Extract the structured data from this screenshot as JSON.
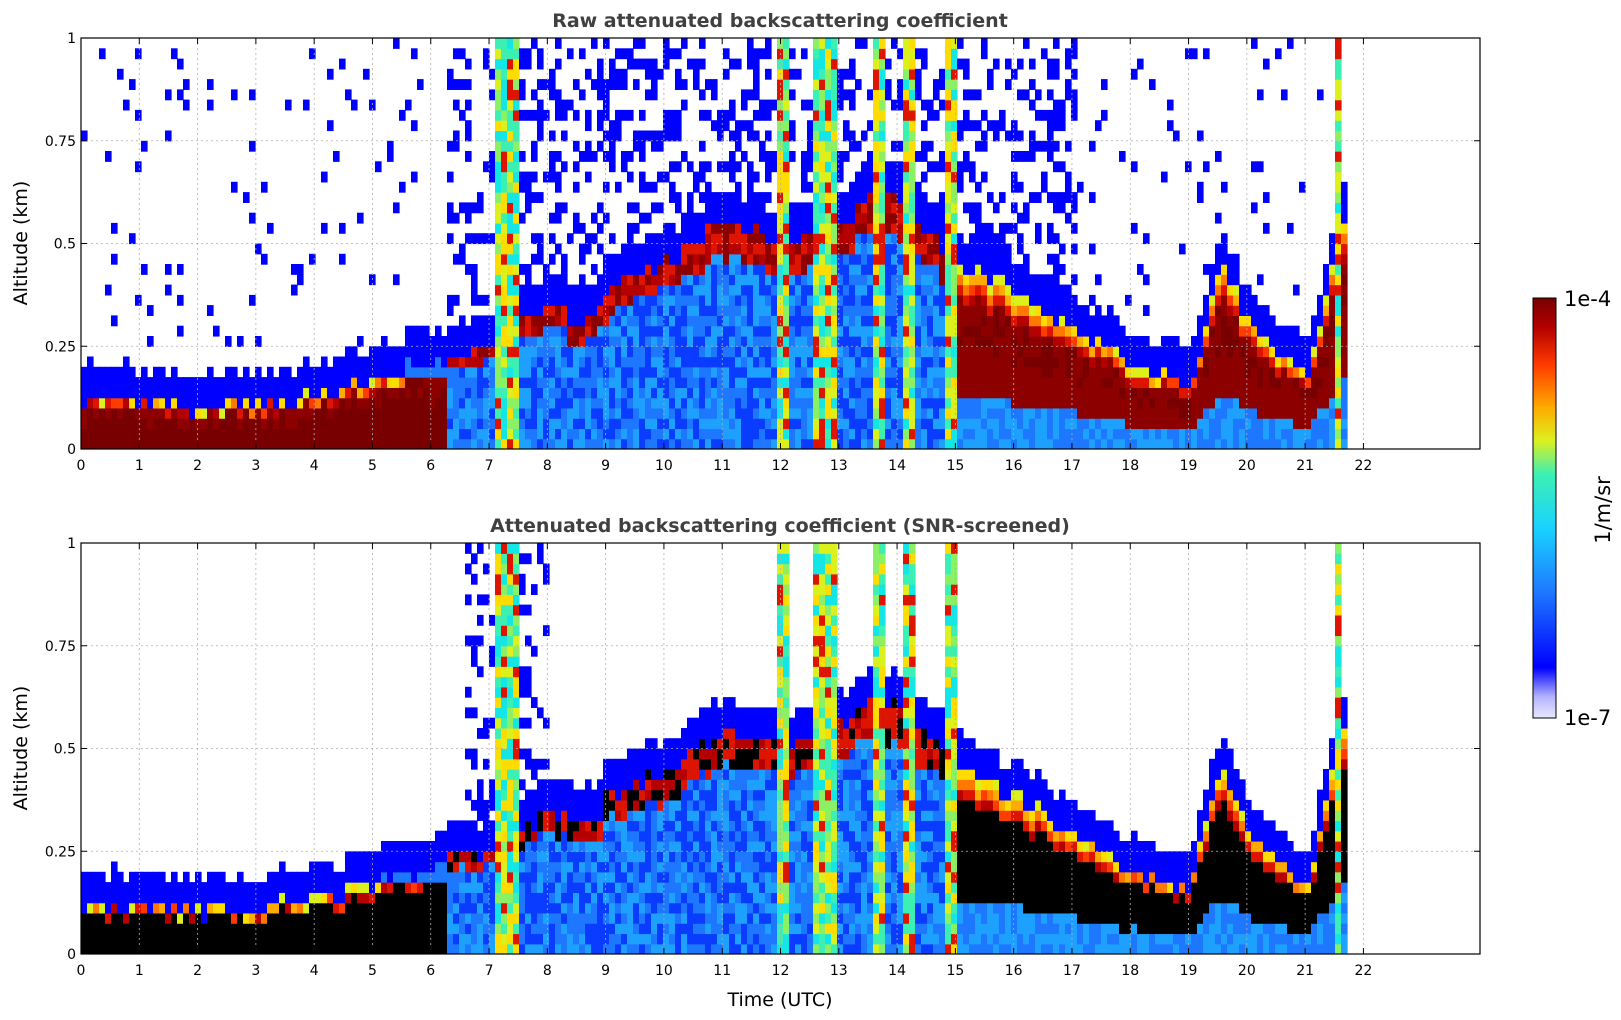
{
  "colors": {
    "title": "#404040",
    "grid": "#b0b0b0",
    "colormap": [
      "#0000ff",
      "#0a3cff",
      "#1e78ff",
      "#1ea0ff",
      "#19c8ff",
      "#14e6e6",
      "#3cf0b4",
      "#8cf064",
      "#dcf01e",
      "#ffdc00",
      "#ffaa00",
      "#ff7800",
      "#ff3c00",
      "#dc1400",
      "#b40000",
      "#8c0000",
      "#780000"
    ],
    "faint": "#dcdcff",
    "saturated_screened": "#000000"
  },
  "chart_data": [
    {
      "type": "heatmap",
      "title": "Raw attenuated backscattering coefficient",
      "xlabel": "",
      "ylabel": "Altitude (km)",
      "xlim": [
        0,
        24
      ],
      "ylim": [
        0,
        1
      ],
      "x_ticks": [
        0,
        1,
        2,
        3,
        4,
        5,
        6,
        7,
        8,
        9,
        10,
        11,
        12,
        13,
        14,
        15,
        16,
        17,
        18,
        19,
        20,
        21,
        22
      ],
      "y_ticks": [
        0,
        0.25,
        0.5,
        0.75,
        1
      ],
      "y_tick_labels": [
        "0",
        "0.25",
        "0.5",
        "0.75",
        "1"
      ],
      "grid": true,
      "data_extent_hours": [
        0,
        21.7
      ],
      "boundary_layer_top_km": [
        [
          0,
          0.12
        ],
        [
          1,
          0.12
        ],
        [
          2,
          0.1
        ],
        [
          3,
          0.11
        ],
        [
          4,
          0.13
        ],
        [
          5,
          0.17
        ],
        [
          6,
          0.22
        ],
        [
          7,
          0.25
        ],
        [
          8,
          0.35
        ],
        [
          8.5,
          0.3
        ],
        [
          9,
          0.38
        ],
        [
          10,
          0.45
        ],
        [
          11,
          0.55
        ],
        [
          12,
          0.5
        ],
        [
          13,
          0.55
        ],
        [
          13.5,
          0.62
        ],
        [
          14,
          0.6
        ],
        [
          15,
          0.45
        ],
        [
          16,
          0.38
        ],
        [
          17,
          0.3
        ],
        [
          18,
          0.2
        ],
        [
          19,
          0.17
        ],
        [
          19.5,
          0.45
        ],
        [
          20,
          0.3
        ],
        [
          21,
          0.17
        ],
        [
          21.6,
          0.55
        ]
      ],
      "precipitation_bands_hours": [
        [
          7.0,
          7.5
        ],
        [
          11.85,
          12.05
        ],
        [
          12.5,
          12.9
        ],
        [
          13.5,
          13.7
        ],
        [
          14.1,
          14.3
        ],
        [
          14.8,
          14.95
        ],
        [
          21.45,
          21.6
        ]
      ]
    },
    {
      "type": "heatmap",
      "title": "Attenuated backscattering coefficient (SNR-screened)",
      "xlabel": "Time (UTC)",
      "ylabel": "Altitude (km)",
      "xlim": [
        0,
        24
      ],
      "ylim": [
        0,
        1
      ],
      "x_ticks": [
        0,
        1,
        2,
        3,
        4,
        5,
        6,
        7,
        8,
        9,
        10,
        11,
        12,
        13,
        14,
        15,
        16,
        17,
        18,
        19,
        20,
        21,
        22
      ],
      "y_ticks": [
        0,
        0.25,
        0.5,
        0.75,
        1
      ],
      "y_tick_labels": [
        "0",
        "0.25",
        "0.5",
        "0.75",
        "1"
      ],
      "grid": true,
      "data_extent_hours": [
        0,
        21.7
      ],
      "saturated_color": "black"
    }
  ],
  "colorbar": {
    "label": "1/m/sr",
    "max_label": "1e-4",
    "min_label": "1e-7",
    "min_value": 1e-07,
    "max_value": 0.0001,
    "scale": "log"
  }
}
